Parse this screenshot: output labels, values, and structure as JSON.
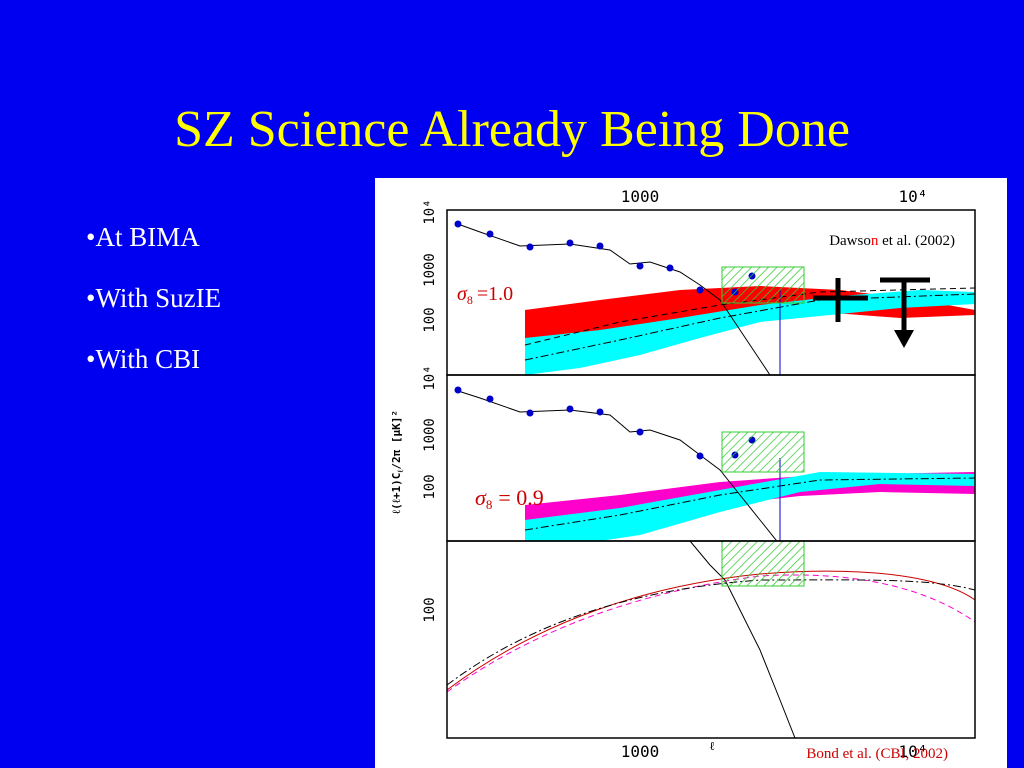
{
  "slide": {
    "title": "SZ Science Already Being Done",
    "bullets": [
      "•At BIMA",
      "•With SuzIE",
      "•With CBI"
    ]
  },
  "figure": {
    "top_axis_labels": [
      "1000",
      "10⁴"
    ],
    "bottom_axis_labels": [
      "1000",
      "10⁴"
    ],
    "x_axis_label": "ℓ",
    "y_axis_label": "ℓ(ℓ+1)C",
    "y_axis_label_sub": "ℓ",
    "y_axis_label_rest": "/2π  [μK]²",
    "panels": [
      {
        "y_labels": [
          "10⁴",
          "1000",
          "100"
        ],
        "annotation": {
          "symbol": "σ",
          "subscript": "8",
          "text": "=1.0"
        }
      },
      {
        "y_labels": [
          "10⁴",
          "1000",
          "100"
        ],
        "annotation": {
          "symbol": "σ",
          "subscript": "8",
          "text": "= 0.9"
        }
      },
      {
        "y_labels": [
          "100"
        ]
      }
    ],
    "credit_top": [
      "Dawso",
      "n",
      " et al. (2002)"
    ],
    "credit_bottom": "Bond et al. (CBI, 2002)"
  }
}
